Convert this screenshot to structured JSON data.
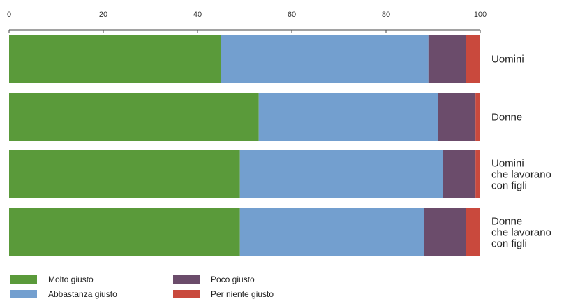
{
  "chart_data": {
    "type": "bar",
    "orientation": "horizontal",
    "stacked": true,
    "title": "",
    "xlabel": "",
    "ylabel": "",
    "xlim": [
      0,
      100
    ],
    "xticks": [
      0,
      20,
      40,
      60,
      80,
      100
    ],
    "grid": false,
    "legend_position": "bottom-left",
    "categories": [
      [
        "Uomini"
      ],
      [
        "Donne"
      ],
      [
        "Uomini",
        "che lavorano",
        "con figli"
      ],
      [
        "Donne",
        "che lavorano",
        "con figli"
      ]
    ],
    "series": [
      {
        "name": "Molto giusto",
        "color": "#5a9a3a",
        "values": [
          45,
          53,
          49,
          49
        ]
      },
      {
        "name": "Abbastanza giusto",
        "color": "#739fcf",
        "values": [
          44,
          38,
          43,
          39
        ]
      },
      {
        "name": "Poco giusto",
        "color": "#6b4c6b",
        "values": [
          8,
          8,
          7,
          9
        ]
      },
      {
        "name": "Per niente giusto",
        "color": "#c9493d",
        "values": [
          3,
          1,
          1,
          3
        ]
      }
    ]
  }
}
